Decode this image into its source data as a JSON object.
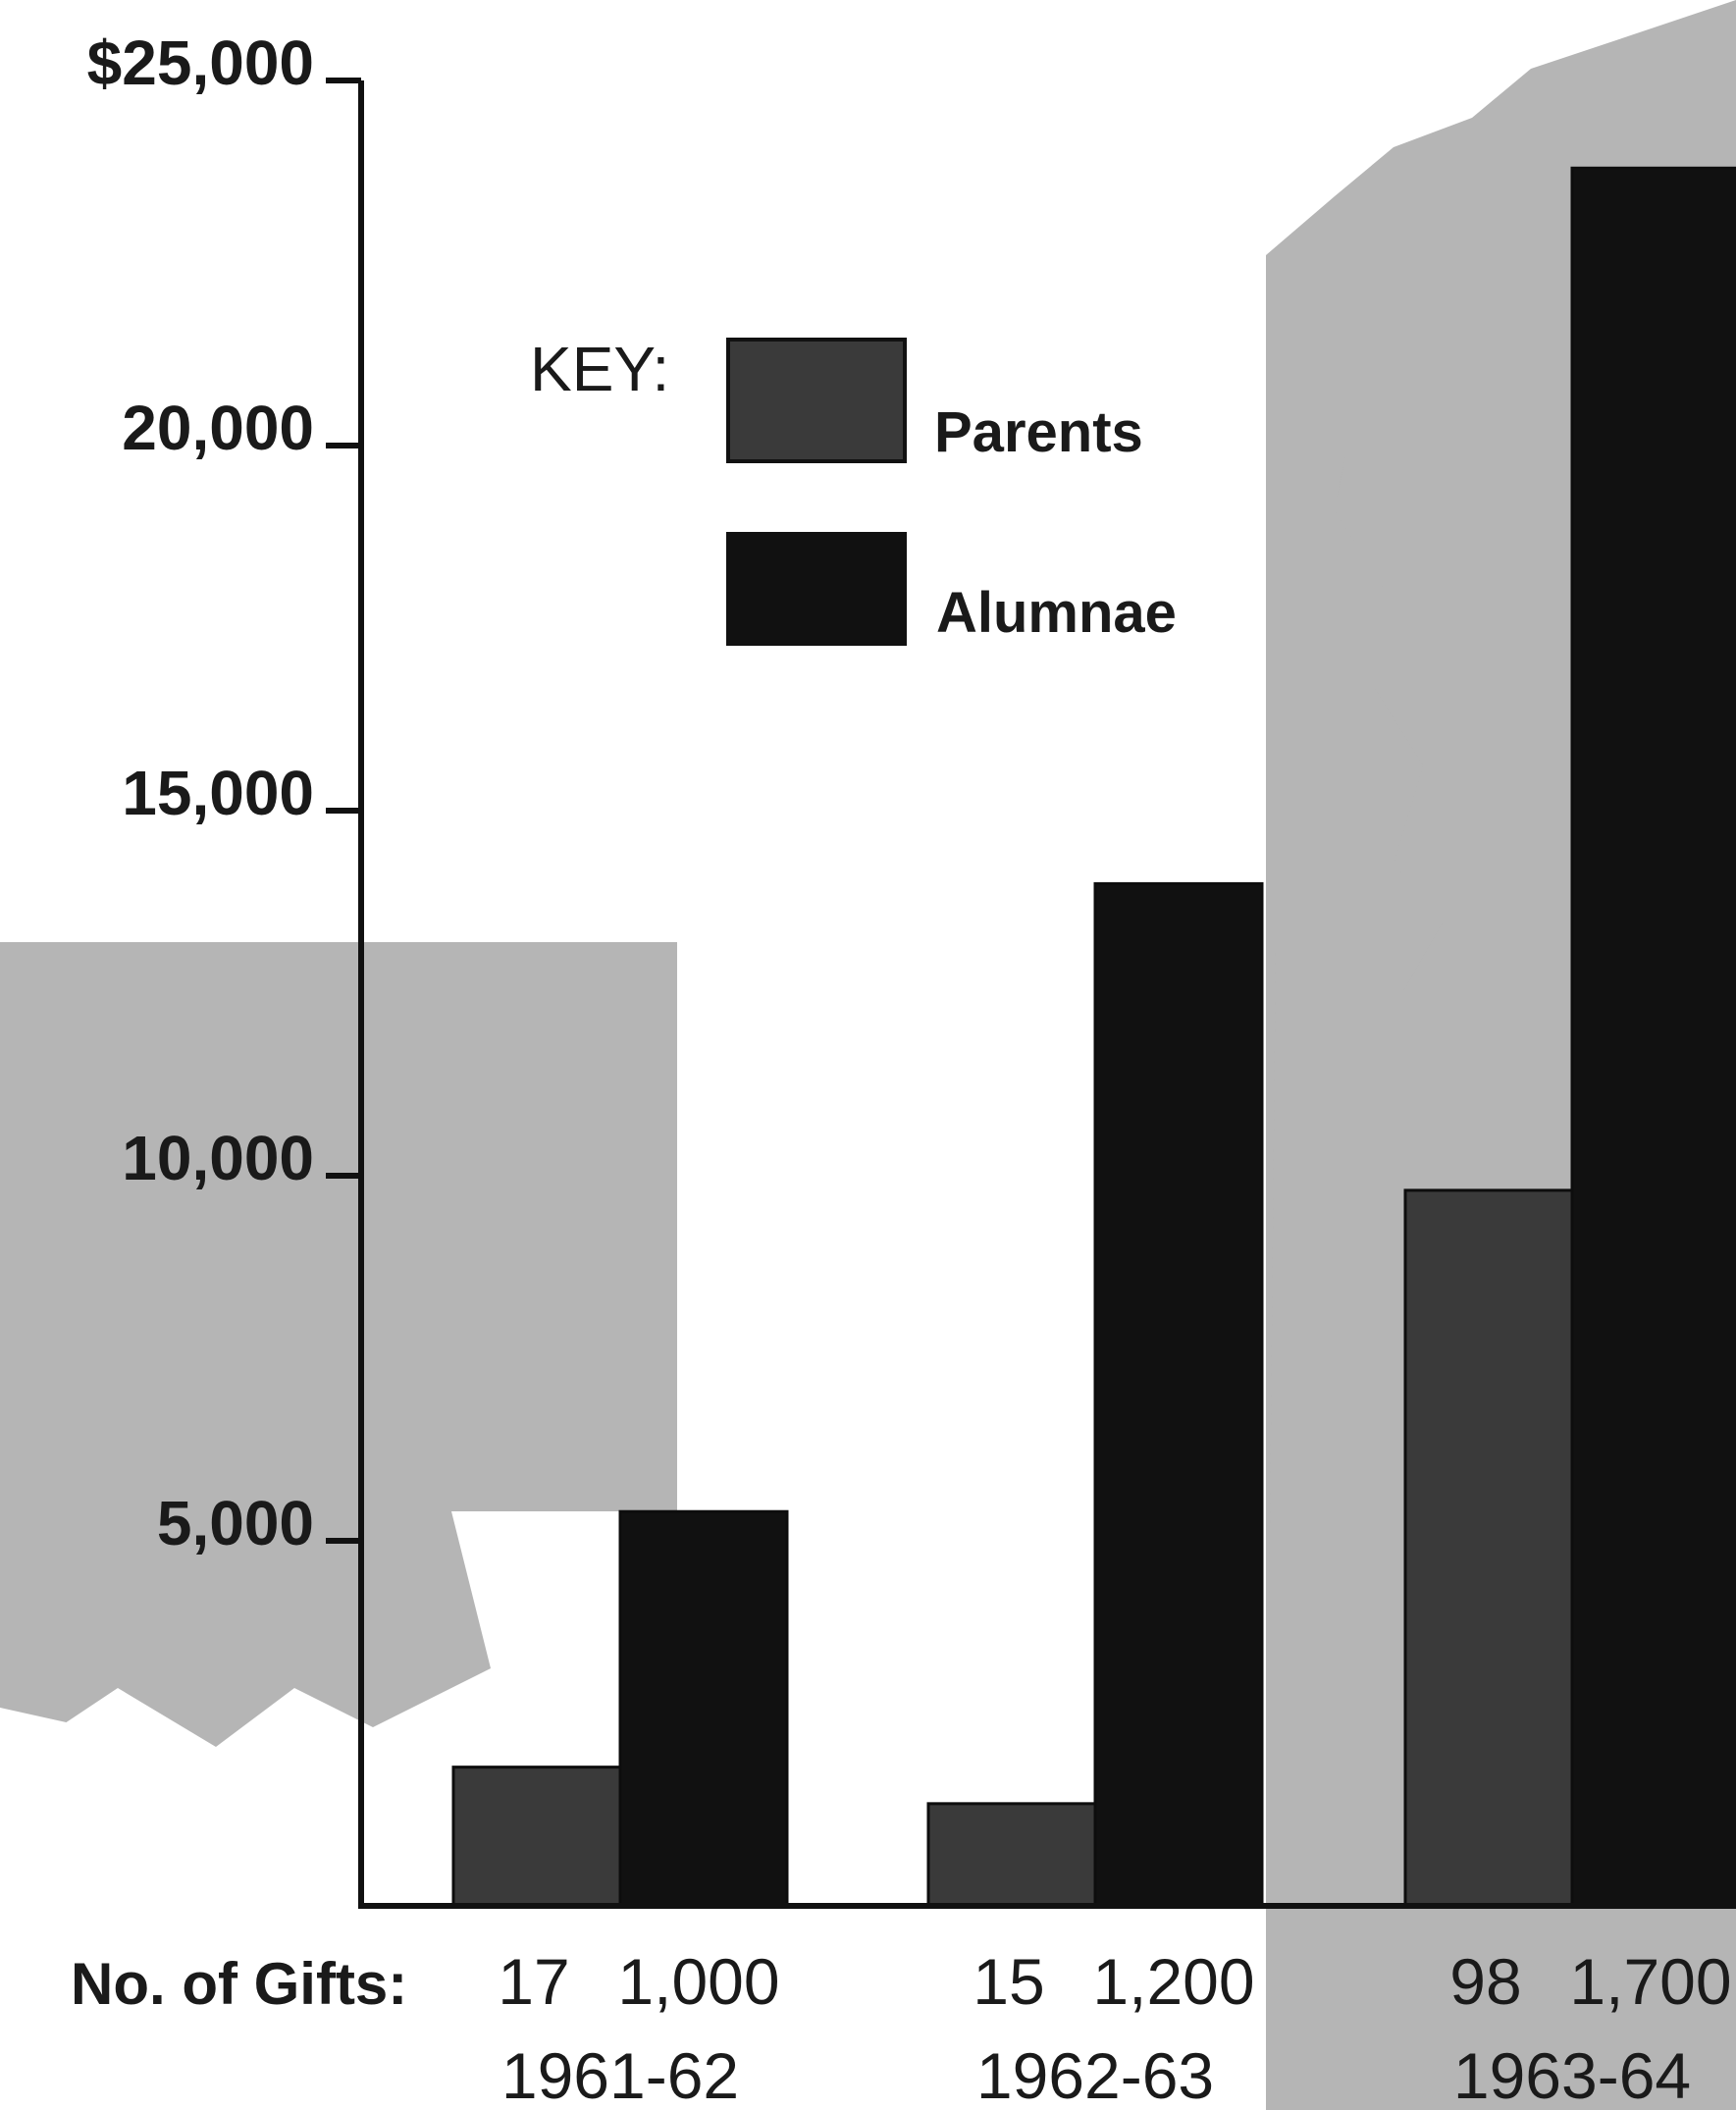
{
  "chart_data": {
    "type": "bar",
    "categories": [
      "1961-62",
      "1962-63",
      "1963-64"
    ],
    "series": [
      {
        "name": "Parents",
        "values": [
          1900,
          1400,
          9800
        ],
        "gifts": [
          "17",
          "15",
          "98"
        ]
      },
      {
        "name": "Alumnae",
        "values": [
          5400,
          14000,
          23800
        ],
        "gifts": [
          "1,000",
          "1,200",
          "1,700"
        ]
      }
    ],
    "ylim": [
      0,
      25000
    ],
    "yticks": [
      {
        "value": 5000,
        "label": "5,000"
      },
      {
        "value": 10000,
        "label": "10,000"
      },
      {
        "value": 15000,
        "label": "15,000"
      },
      {
        "value": 20000,
        "label": "20,000"
      },
      {
        "value": 25000,
        "label": "$25,000"
      }
    ],
    "key_label": "KEY:",
    "gifts_label": "No. of Gifts:",
    "legend_position": "top-center",
    "colors": {
      "Parents": "#3a3a3a",
      "Alumnae": "#111111",
      "background_shading": "#b5b5b5"
    }
  }
}
